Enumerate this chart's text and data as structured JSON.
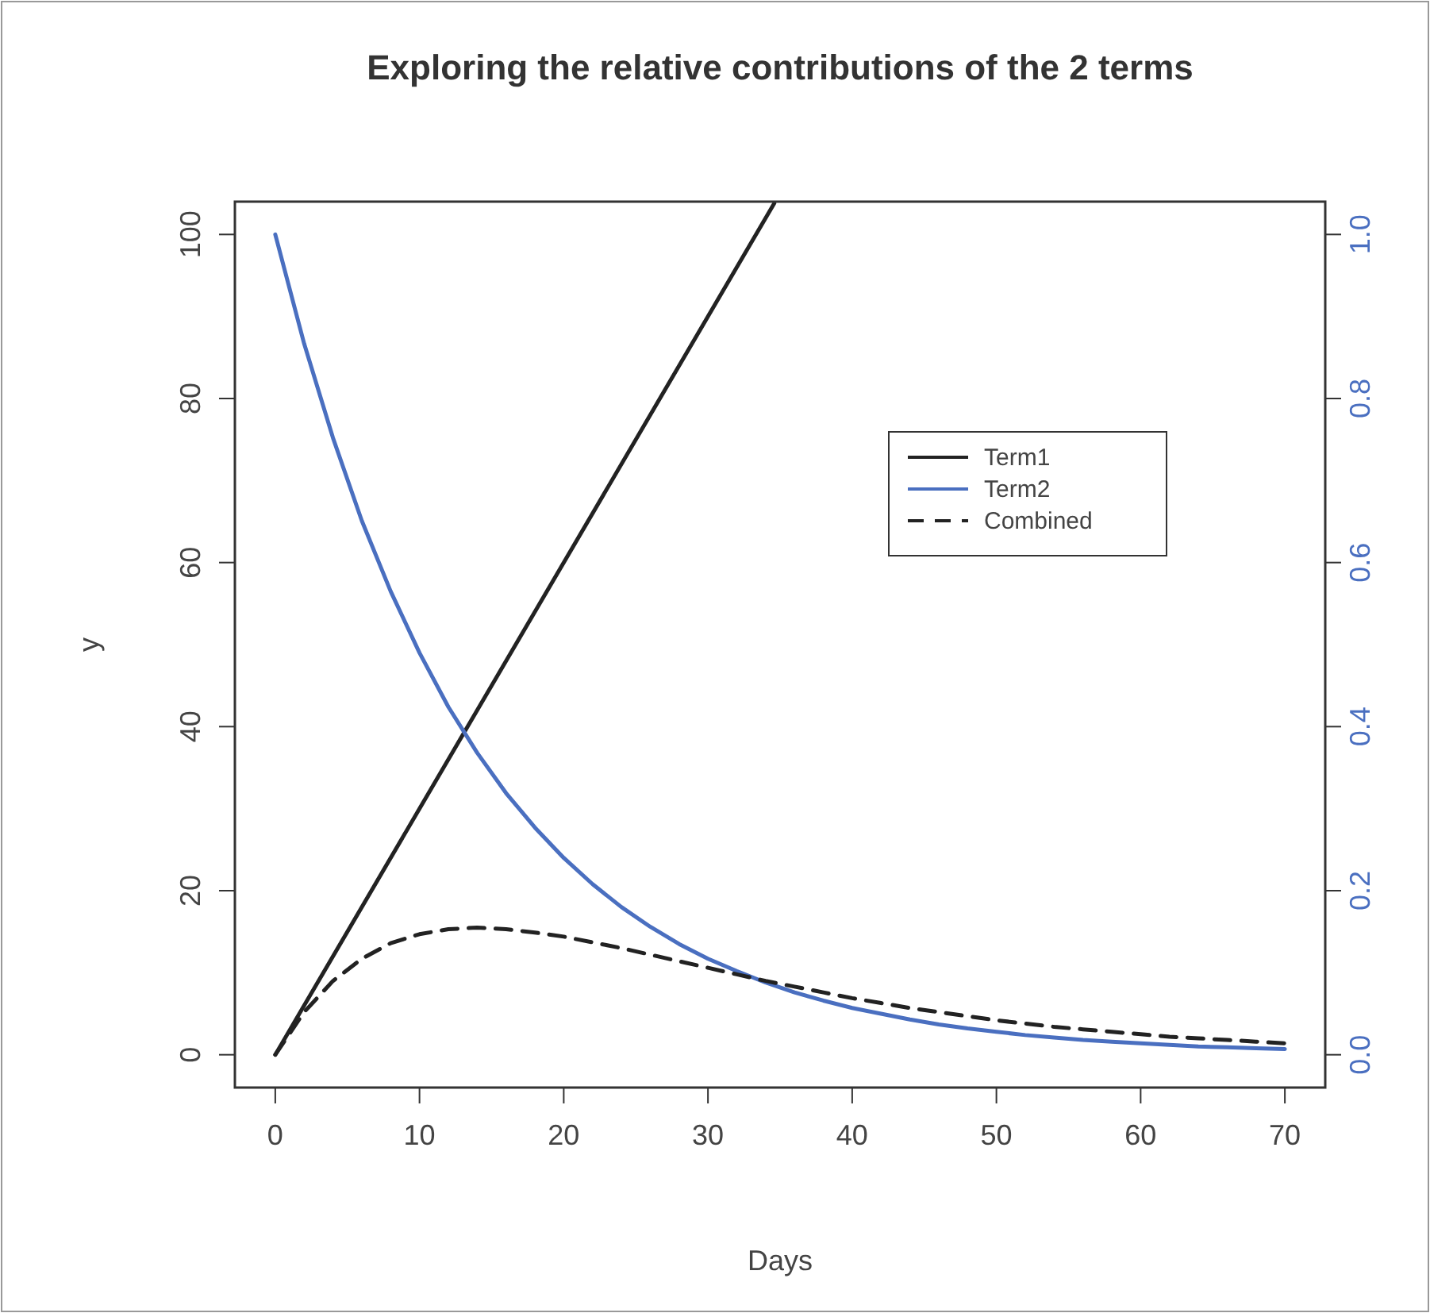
{
  "chart_data": {
    "type": "line",
    "title": "Exploring the relative contributions of the 2 terms",
    "xlabel": "Days",
    "ylabel": "y",
    "xlim": [
      -2.8,
      72.8
    ],
    "xticks": [
      0,
      10,
      20,
      30,
      40,
      50,
      60,
      70
    ],
    "ylim": [
      -4,
      104
    ],
    "yticks": [
      0,
      20,
      40,
      60,
      80,
      100
    ],
    "y2lim": [
      -0.04,
      1.04
    ],
    "y2ticks": [
      {
        "value": 0,
        "label": "0.0"
      },
      0.2,
      0.4,
      0.6,
      0.8,
      {
        "value": 1,
        "label": "1.0"
      }
    ],
    "grid": false,
    "legend": "top right",
    "marker": "none",
    "series": [
      {
        "name": "Term1",
        "color": "#222222",
        "line_style": "solid",
        "x": [
          0,
          34.6
        ],
        "values": [
          0,
          103.8
        ]
      },
      {
        "name": "Term2",
        "color": "#4a6fc0",
        "line_style": "solid",
        "axis": "y2",
        "x": [
          0,
          2,
          4,
          6,
          8,
          10,
          12,
          14,
          16,
          18,
          20,
          22,
          24,
          26,
          28,
          30,
          32,
          34,
          36,
          38,
          40,
          42,
          44,
          46,
          48,
          50,
          52,
          54,
          56,
          58,
          60,
          62,
          64,
          66,
          68,
          70
        ],
        "values": [
          1,
          0.867,
          0.752,
          0.651,
          0.565,
          0.49,
          0.424,
          0.368,
          0.319,
          0.277,
          0.24,
          0.208,
          0.18,
          0.156,
          0.135,
          0.117,
          0.102,
          0.088,
          0.076,
          0.066,
          0.057,
          0.05,
          0.043,
          0.037,
          0.032,
          0.028,
          0.024,
          0.021,
          0.018,
          0.016,
          0.014,
          0.012,
          0.01,
          0.009,
          0.008,
          0.007
        ]
      },
      {
        "name": "Combined",
        "color": "#222222",
        "line_style": "dashed",
        "x": [
          0,
          2,
          4,
          6,
          8,
          10,
          12,
          14,
          16,
          18,
          20,
          22,
          24,
          26,
          28,
          30,
          32,
          34,
          36,
          38,
          40,
          42,
          44,
          46,
          48,
          50,
          52,
          54,
          56,
          58,
          60,
          62,
          64,
          66,
          68,
          70
        ],
        "values": [
          0,
          5.2,
          9.0,
          11.7,
          13.6,
          14.7,
          15.3,
          15.5,
          15.3,
          14.9,
          14.4,
          13.7,
          13.0,
          12.2,
          11.4,
          10.6,
          9.8,
          9.0,
          8.3,
          7.6,
          6.9,
          6.3,
          5.7,
          5.2,
          4.7,
          4.2,
          3.8,
          3.4,
          3.1,
          2.8,
          2.5,
          2.2,
          2.0,
          1.8,
          1.6,
          1.4
        ]
      }
    ]
  }
}
